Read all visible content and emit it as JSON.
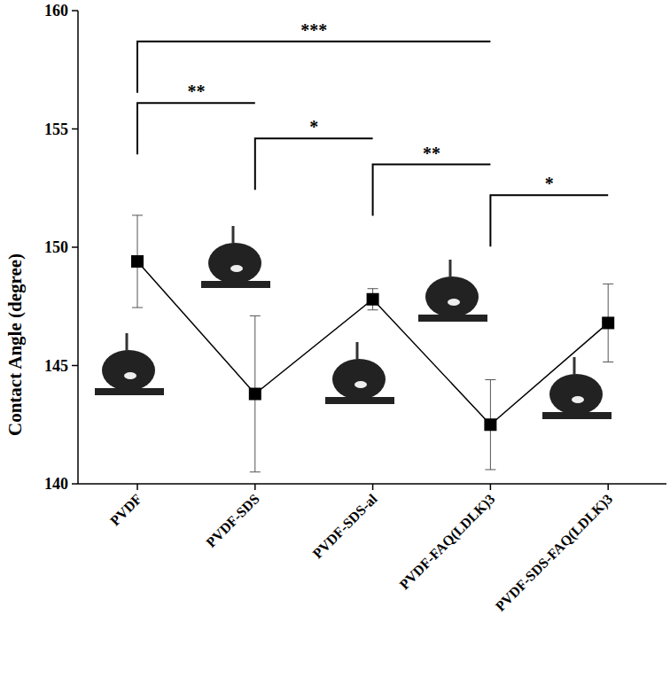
{
  "chart_data": {
    "type": "line",
    "y_label": "Contact Angle (degree)",
    "categories": [
      "PVDF",
      "PVDF-SDS",
      "PVDF-SDS-al",
      "PVDF-FAQ(LDLK)3",
      "PVDF-SDS-FAQ(LDLK)3"
    ],
    "values": [
      149.4,
      143.8,
      147.8,
      142.5,
      146.8
    ],
    "errors": [
      1.95,
      3.3,
      0.45,
      1.9,
      1.65
    ],
    "color": "#000000",
    "marker": "square",
    "line_style": "solid",
    "ylim": [
      140,
      160
    ],
    "yticks": [
      140,
      145,
      150,
      155,
      160
    ],
    "grid": false,
    "annotations": [
      {
        "text": "***",
        "from": "PVDF",
        "to": "PVDF-FAQ(LDLK)3",
        "y": 158.7
      },
      {
        "text": "**",
        "from": "PVDF",
        "to": "PVDF-SDS",
        "y": 156.1
      },
      {
        "text": "*",
        "from": "PVDF-SDS",
        "to": "PVDF-SDS-al",
        "y": 154.6
      },
      {
        "text": "**",
        "from": "PVDF-SDS-al",
        "to": "PVDF-FAQ(LDLK)3",
        "y": 153.5
      },
      {
        "text": "*",
        "from": "PVDF-FAQ(LDLK)3",
        "to": "PVDF-SDS-FAQ(LDLK)3",
        "y": 152.2
      }
    ]
  }
}
